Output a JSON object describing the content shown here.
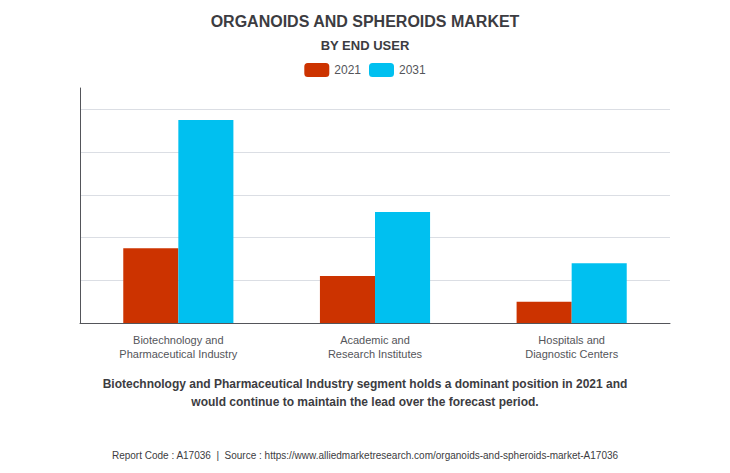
{
  "chart_data": {
    "type": "bar",
    "title": "ORGANOIDS AND SPHEROIDS MARKET",
    "subtitle": "BY END USER",
    "categories": [
      "Biotechnology and\nPharmaceutical Industry",
      "Academic and\nResearch Institutes",
      "Hospitals and\nDiagnostic Centers"
    ],
    "series": [
      {
        "name": "2021",
        "color": "#cc3300",
        "values": [
          3.5,
          2.2,
          1.0
        ]
      },
      {
        "name": "2031",
        "color": "#00c0f0",
        "values": [
          9.5,
          5.2,
          2.8
        ]
      }
    ],
    "ylim": [
      0,
      11
    ],
    "yticks": [
      0,
      2,
      4,
      6,
      8,
      10
    ],
    "grid": true,
    "legend": "top",
    "tick_labels": "x",
    "annotations": [
      "Biotechnology and Pharmaceutical Industry segment holds a dominant position in 2021 and\nwould continue to maintain the lead over the forecast period.",
      "Report Code : A17036  |  Source : https://www.alliedmarketresearch.com/organoids-and-spheroids-market-A17036"
    ]
  }
}
